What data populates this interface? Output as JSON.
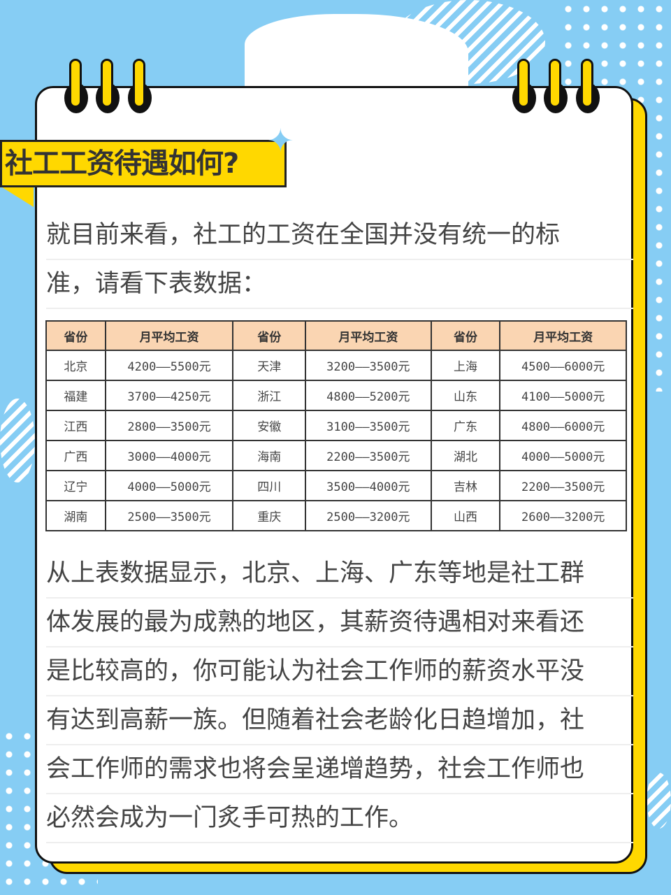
{
  "title": "社工工资待遇如何?",
  "intro_lines": [
    "就目前来看，社工的工资在全国并没有统一的标",
    "准，请看下表数据："
  ],
  "table": {
    "headers": [
      "省份",
      "月平均工资",
      "省份",
      "月平均工资",
      "省份",
      "月平均工资"
    ],
    "rows": [
      [
        "北京",
        "4200——5500元",
        "天津",
        "3200——3500元",
        "上海",
        "4500——6000元"
      ],
      [
        "福建",
        "3700——4250元",
        "浙江",
        "4800——5200元",
        "山东",
        "4100——5000元"
      ],
      [
        "江西",
        "2800——3500元",
        "安徽",
        "3100——3500元",
        "广东",
        "4800——6000元"
      ],
      [
        "广西",
        "3000——4000元",
        "海南",
        "2200——3500元",
        "湖北",
        "4000——5000元"
      ],
      [
        "辽宁",
        "4000——5000元",
        "四川",
        "3500——4000元",
        "吉林",
        "2200——3500元"
      ],
      [
        "湖南",
        "2500——3500元",
        "重庆",
        "2500——3200元",
        "山西",
        "2600——3200元"
      ]
    ]
  },
  "conclusion_lines": [
    "从上表数据显示，北京、上海、广东等地是社工群",
    "体发展的最为成熟的地区，其薪资待遇相对来看还",
    "是比较高的，你可能认为社会工作师的薪资水平没",
    "有达到高薪一族。但随着社会老龄化日趋增加，社",
    "会工作师的需求也将会呈递增趋势，社会工作师也",
    "必然会成为一门炙手可热的工作。"
  ],
  "colors": {
    "background": "#86cdf4",
    "accent": "#ffd800",
    "header_fill": "#fad5b2"
  }
}
